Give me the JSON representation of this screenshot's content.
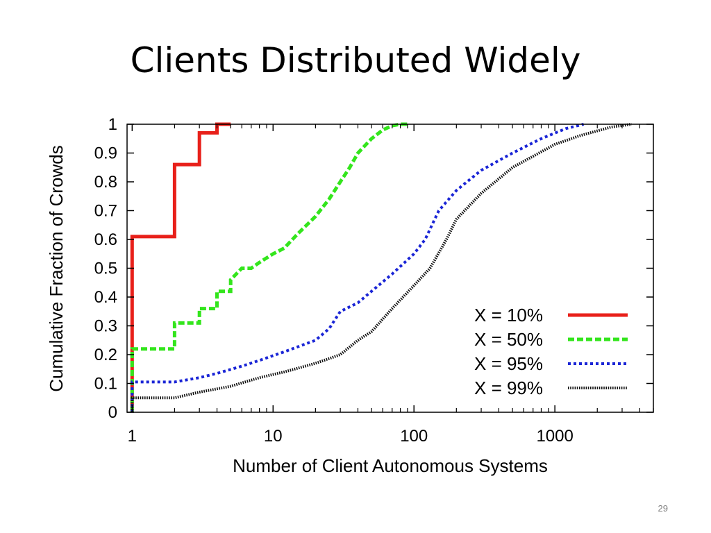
{
  "slide": {
    "title": "Clients Distributed Widely",
    "page_number": "29"
  },
  "chart_data": {
    "type": "line",
    "title": "",
    "xlabel": "Number of Client Autonomous Systems",
    "ylabel": "Cumulative Fraction of Crowds",
    "x_scale": "log",
    "xlim": [
      0.92,
      5000
    ],
    "ylim": [
      0,
      1
    ],
    "x_ticks": [
      1,
      10,
      100,
      1000
    ],
    "x_tick_labels": [
      "1",
      "10",
      "100",
      "1000"
    ],
    "y_ticks": [
      0,
      0.1,
      0.2,
      0.3,
      0.4,
      0.5,
      0.6,
      0.7,
      0.8,
      0.9,
      1
    ],
    "y_tick_labels": [
      "0",
      "0.1",
      "0.2",
      "0.3",
      "0.4",
      "0.5",
      "0.6",
      "0.7",
      "0.8",
      "0.9",
      "1"
    ],
    "grid": false,
    "legend_position": "bottom-right",
    "series": [
      {
        "name": "X = 10%",
        "color": "#e8201a",
        "style": "solid",
        "step": true,
        "points": [
          [
            1,
            0
          ],
          [
            1,
            0.61
          ],
          [
            2,
            0.61
          ],
          [
            2,
            0.86
          ],
          [
            3,
            0.86
          ],
          [
            3,
            0.97
          ],
          [
            4,
            0.97
          ],
          [
            4,
            1.0
          ],
          [
            5,
            1.0
          ]
        ]
      },
      {
        "name": "X = 50%",
        "color": "#33e51c",
        "style": "dashed",
        "step": false,
        "points": [
          [
            1,
            0
          ],
          [
            1,
            0.22
          ],
          [
            1.5,
            0.22
          ],
          [
            2,
            0.22
          ],
          [
            2,
            0.31
          ],
          [
            2.5,
            0.31
          ],
          [
            3,
            0.31
          ],
          [
            3,
            0.36
          ],
          [
            3.5,
            0.36
          ],
          [
            4,
            0.36
          ],
          [
            4,
            0.42
          ],
          [
            5,
            0.42
          ],
          [
            5,
            0.46
          ],
          [
            6,
            0.5
          ],
          [
            7,
            0.5
          ],
          [
            8,
            0.52
          ],
          [
            10,
            0.55
          ],
          [
            12,
            0.57
          ],
          [
            15,
            0.62
          ],
          [
            20,
            0.68
          ],
          [
            25,
            0.74
          ],
          [
            30,
            0.8
          ],
          [
            35,
            0.85
          ],
          [
            40,
            0.9
          ],
          [
            50,
            0.95
          ],
          [
            60,
            0.98
          ],
          [
            70,
            0.995
          ],
          [
            80,
            1.0
          ],
          [
            90,
            1.0
          ]
        ]
      },
      {
        "name": "X = 95%",
        "color": "#1a25d6",
        "style": "dotted",
        "step": false,
        "points": [
          [
            1,
            0
          ],
          [
            1,
            0.105
          ],
          [
            2,
            0.105
          ],
          [
            3,
            0.12
          ],
          [
            4,
            0.135
          ],
          [
            6,
            0.16
          ],
          [
            8,
            0.18
          ],
          [
            12,
            0.21
          ],
          [
            20,
            0.25
          ],
          [
            25,
            0.29
          ],
          [
            30,
            0.35
          ],
          [
            40,
            0.38
          ],
          [
            50,
            0.42
          ],
          [
            70,
            0.48
          ],
          [
            100,
            0.55
          ],
          [
            120,
            0.6
          ],
          [
            150,
            0.7
          ],
          [
            200,
            0.77
          ],
          [
            300,
            0.84
          ],
          [
            500,
            0.9
          ],
          [
            800,
            0.95
          ],
          [
            1200,
            0.985
          ],
          [
            1600,
            1.0
          ]
        ]
      },
      {
        "name": "X = 99%",
        "color": "#111111",
        "style": "hatched",
        "step": false,
        "points": [
          [
            1,
            0
          ],
          [
            1,
            0.05
          ],
          [
            2,
            0.05
          ],
          [
            3,
            0.07
          ],
          [
            5,
            0.09
          ],
          [
            8,
            0.12
          ],
          [
            12,
            0.14
          ],
          [
            20,
            0.17
          ],
          [
            30,
            0.2
          ],
          [
            40,
            0.25
          ],
          [
            50,
            0.28
          ],
          [
            70,
            0.36
          ],
          [
            100,
            0.44
          ],
          [
            130,
            0.5
          ],
          [
            170,
            0.6
          ],
          [
            200,
            0.67
          ],
          [
            300,
            0.76
          ],
          [
            500,
            0.85
          ],
          [
            1000,
            0.93
          ],
          [
            1500,
            0.96
          ],
          [
            2500,
            0.99
          ],
          [
            3500,
            1.0
          ]
        ]
      }
    ]
  }
}
